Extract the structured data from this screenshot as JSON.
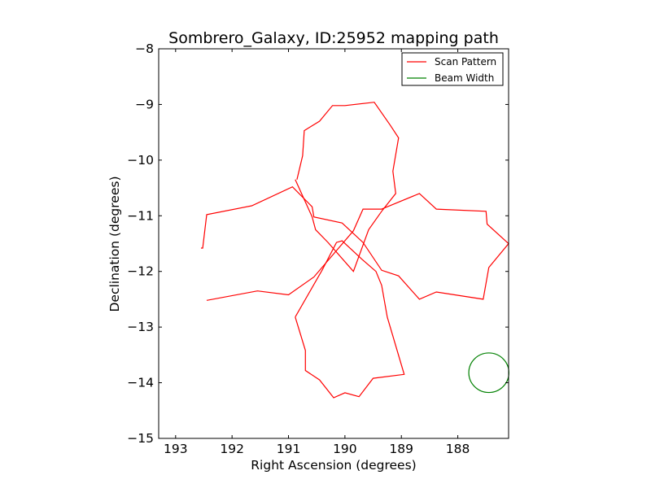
{
  "chart_data": {
    "type": "line",
    "title": "Sombrero_Galaxy, ID:25952 mapping path",
    "xlabel": "Right Ascension (degrees)",
    "ylabel": "Declination (degrees)",
    "xlim": [
      193.3,
      187.1
    ],
    "ylim": [
      -15,
      -8
    ],
    "xticks": [
      193,
      192,
      191,
      190,
      189,
      188
    ],
    "yticks": [
      -15,
      -14,
      -13,
      -12,
      -11,
      -10,
      -9,
      -8
    ],
    "grid": false,
    "legend_position": "top-right",
    "series": [
      {
        "name": "Scan Pattern",
        "color": "#ff0000",
        "x": [
          192.55,
          192.52,
          192.45,
          191.65,
          190.93,
          190.55,
          190.5,
          190.05,
          189.88,
          189.85,
          190.55,
          191.0,
          191.55,
          192.45
        ],
        "y": [
          -11.58,
          -11.58,
          -10.98,
          -10.82,
          -10.48,
          -11.02,
          -11.22,
          -11.48,
          -11.95,
          -12.0,
          -12.1,
          -12.42,
          -12.35,
          -12.52
        ],
        "segments": [
          {
            "x": [
              192.55,
              192.52,
              192.45,
              191.65,
              190.93,
              190.58,
              190.55,
              190.05,
              189.68,
              189.35,
              189.05,
              188.68,
              188.38,
              187.55,
              187.45,
              187.1,
              187.48,
              187.5,
              188.38,
              188.68,
              189.35,
              189.68,
              189.85,
              190.55,
              191.0,
              191.55,
              192.45
            ],
            "y": [
              -11.58,
              -11.58,
              -10.98,
              -10.82,
              -10.48,
              -10.84,
              -11.02,
              -11.13,
              -11.48,
              -11.98,
              -12.08,
              -12.5,
              -12.37,
              -12.5,
              -11.93,
              -11.5,
              -11.15,
              -10.92,
              -10.88,
              -10.6,
              -10.88,
              -10.88,
              -11.27,
              -12.1,
              -12.42,
              -12.35,
              -12.52
            ]
          },
          {
            "x": [
              190.85,
              190.75,
              190.72,
              190.45,
              190.22,
              190.0,
              189.48,
              189.2,
              189.05,
              189.15,
              189.1,
              189.35,
              189.58,
              189.85,
              190.3,
              190.52,
              190.58,
              190.88
            ],
            "y": [
              -10.35,
              -9.92,
              -9.47,
              -9.3,
              -9.02,
              -9.02,
              -8.96,
              -9.37,
              -9.6,
              -10.2,
              -10.6,
              -10.92,
              -11.25,
              -12.0,
              -11.48,
              -11.25,
              -11.02,
              -10.35
            ]
          },
          {
            "x": [
              190.88,
              190.7,
              190.7,
              190.45,
              190.2,
              190.0,
              189.75,
              189.5,
              188.95,
              189.25,
              189.35,
              189.45,
              189.7,
              190.05,
              190.15,
              190.4,
              190.88
            ],
            "y": [
              -12.82,
              -13.42,
              -13.78,
              -13.95,
              -14.27,
              -14.18,
              -14.25,
              -13.92,
              -13.85,
              -12.82,
              -12.25,
              -12.0,
              -11.78,
              -11.45,
              -11.48,
              -11.97,
              -12.82
            ]
          }
        ]
      },
      {
        "name": "Beam Width",
        "color": "#008000",
        "center": [
          187.45,
          -13.82
        ],
        "radius": 0.355
      }
    ]
  },
  "legend": {
    "items": [
      {
        "label": "Scan Pattern",
        "color": "#ff0000"
      },
      {
        "label": "Beam Width",
        "color": "#008000"
      }
    ]
  }
}
